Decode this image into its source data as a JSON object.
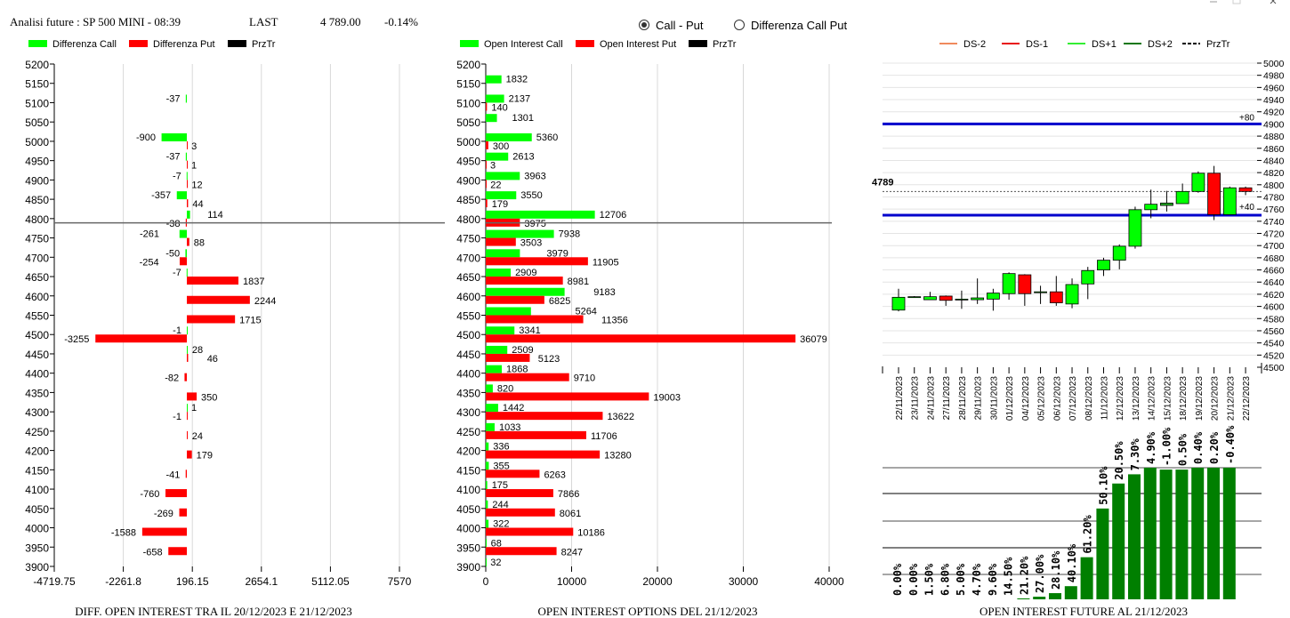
{
  "header": {
    "title": "Analisi future : SP 500 MINI - 08:39",
    "last_label": "LAST",
    "last_value": "4 789.00",
    "change": "-0.14%"
  },
  "mode": {
    "options": [
      "Call - Put",
      "Differenza Call Put"
    ],
    "selected": "Call - Put"
  },
  "window_controls": [
    "minimize",
    "maximize",
    "close"
  ],
  "colors": {
    "call": "#00ff00",
    "put": "#ff0000",
    "prztr": "#000000",
    "ds_minus2": "#f08a5d",
    "ds_minus1": "#e81010",
    "ds_plus1": "#33ee33",
    "ds_plus2": "#117711",
    "level": "#0000cc",
    "oi_bar": "#007f00"
  },
  "legends": {
    "diff": [
      "Differenza Call",
      "Differenza Put",
      "PrzTr"
    ],
    "oi": [
      "Open Interest Call",
      "Open Interest Put",
      "PrzTr"
    ],
    "future": [
      "DS-2",
      "DS-1",
      "DS+1",
      "DS+2",
      "PrzTr"
    ]
  },
  "chart_data": [
    {
      "type": "bar",
      "orientation": "horizontal",
      "title": "DIFF. OPEN INTEREST TRA IL 20/12/2023 E 21/12/2023",
      "xlim": [
        -4719.75,
        7570
      ],
      "xticks": [
        "-4719.75",
        "-2261.8",
        "196.15",
        "2654.1",
        "5112.05",
        "7570"
      ],
      "ylim": [
        3900,
        5200
      ],
      "price_line": 4789,
      "grid": true,
      "strikes": [
        5150,
        5100,
        5050,
        5000,
        4950,
        4900,
        4850,
        4800,
        4750,
        4700,
        4650,
        4600,
        4550,
        4500,
        4450,
        4400,
        4350,
        4300,
        4250,
        4200,
        4150,
        4100,
        4050,
        4000,
        3950
      ],
      "series": [
        {
          "name": "Differenza Call",
          "values": [
            null,
            -37,
            null,
            -900,
            -37,
            -7,
            -357,
            114,
            -261,
            -50,
            -7,
            null,
            null,
            -1,
            28,
            null,
            null,
            1,
            null,
            null,
            null,
            null,
            null,
            null,
            null
          ]
        },
        {
          "name": "Differenza Put",
          "values": [
            null,
            null,
            null,
            3,
            1,
            12,
            44,
            -38,
            88,
            -254,
            1837,
            2244,
            1715,
            -3255,
            46,
            -82,
            350,
            -1,
            24,
            179,
            -41,
            -760,
            -269,
            -1588,
            -658
          ]
        }
      ]
    },
    {
      "type": "bar",
      "orientation": "horizontal",
      "title": "OPEN INTEREST OPTIONS DEL 21/12/2023",
      "xlim": [
        0,
        40000
      ],
      "xticks": [
        "0",
        "10000",
        "20000",
        "30000",
        "40000"
      ],
      "ylim": [
        3900,
        5200
      ],
      "price_line": 4789,
      "grid": true,
      "strikes": [
        5150,
        5100,
        5050,
        5000,
        4950,
        4900,
        4850,
        4800,
        4750,
        4700,
        4650,
        4600,
        4550,
        4500,
        4450,
        4400,
        4350,
        4300,
        4250,
        4200,
        4150,
        4100,
        4050,
        4000,
        3950,
        3900
      ],
      "series": [
        {
          "name": "Open Interest Call",
          "values": [
            1832,
            2137,
            1301,
            5360,
            2613,
            3963,
            3550,
            12706,
            7938,
            3979,
            2909,
            9183,
            5264,
            3341,
            2509,
            1868,
            820,
            1442,
            1033,
            336,
            355,
            175,
            244,
            322,
            68,
            32
          ]
        },
        {
          "name": "Open Interest Put",
          "values": [
            null,
            140,
            null,
            300,
            3,
            22,
            179,
            3975,
            3503,
            11905,
            8981,
            6825,
            11356,
            36079,
            5123,
            9710,
            19003,
            13622,
            11706,
            13280,
            6263,
            7866,
            8061,
            10186,
            8247,
            null
          ]
        }
      ]
    },
    {
      "type": "candlestick",
      "ylim": [
        4500,
        5000
      ],
      "yticks_step": 20,
      "price_line": 4789,
      "price_label": "4789",
      "levels": [
        {
          "value": 4900,
          "label": "+80"
        },
        {
          "value": 4750,
          "label": "+40"
        }
      ],
      "dates": [
        "22/11/2023",
        "23/11/2023",
        "24/11/2023",
        "27/11/2023",
        "28/11/2023",
        "29/11/2023",
        "30/11/2023",
        "01/12/2023",
        "04/12/2023",
        "05/12/2023",
        "06/12/2023",
        "07/12/2023",
        "08/12/2023",
        "11/12/2023",
        "12/12/2023",
        "13/12/2023",
        "14/12/2023",
        "15/12/2023",
        "18/12/2023",
        "19/12/2023",
        "20/12/2023",
        "21/12/2023",
        "22/12/2023"
      ],
      "ohlc": [
        [
          4594,
          4629,
          4592,
          4615
        ],
        [
          4616,
          4617,
          4615,
          4616
        ],
        [
          4611,
          4624,
          4611,
          4616
        ],
        [
          4617,
          4618,
          4601,
          4610
        ],
        [
          4612,
          4626,
          4596,
          4612
        ],
        [
          4611,
          4646,
          4604,
          4614
        ],
        [
          4612,
          4629,
          4593,
          4622
        ],
        [
          4621,
          4656,
          4611,
          4654
        ],
        [
          4652,
          4653,
          4601,
          4621
        ],
        [
          4624,
          4634,
          4604,
          4624
        ],
        [
          4624,
          4650,
          4601,
          4606
        ],
        [
          4604,
          4646,
          4597,
          4636
        ],
        [
          4637,
          4665,
          4612,
          4659
        ],
        [
          4660,
          4680,
          4650,
          4676
        ],
        [
          4676,
          4702,
          4661,
          4699
        ],
        [
          4699,
          4764,
          4695,
          4759
        ],
        [
          4759,
          4792,
          4745,
          4768
        ],
        [
          4766,
          4790,
          4756,
          4770
        ],
        [
          4769,
          4802,
          4769,
          4789
        ],
        [
          4789,
          4822,
          4787,
          4819
        ],
        [
          4819,
          4831,
          4742,
          4751
        ],
        [
          4751,
          4797,
          4751,
          4795
        ],
        [
          4795,
          4797,
          4783,
          4789
        ]
      ]
    },
    {
      "type": "bar",
      "title": "OPEN INTEREST FUTURE AL 21/12/2023",
      "labels": [
        "0.00%",
        "0.00%",
        "1.50%",
        "6.80%",
        "5.00%",
        "4.70%",
        "9.60%",
        "14.50%",
        "21.20%",
        "27.00%",
        "28.10%",
        "40.10%",
        "61.20%",
        "50.10%",
        "20.50%",
        "7.30%",
        "4.90%",
        "-1.00%",
        "0.50%",
        "0.40%",
        "0.20%",
        "-0.40%"
      ],
      "relative_values": [
        0,
        0,
        0,
        0,
        0,
        0,
        0,
        0,
        0.007,
        0.02,
        0.047,
        0.1,
        0.32,
        0.69,
        0.88,
        0.95,
        1.0,
        0.986,
        0.986,
        1.0,
        1.0,
        1.0
      ]
    }
  ]
}
